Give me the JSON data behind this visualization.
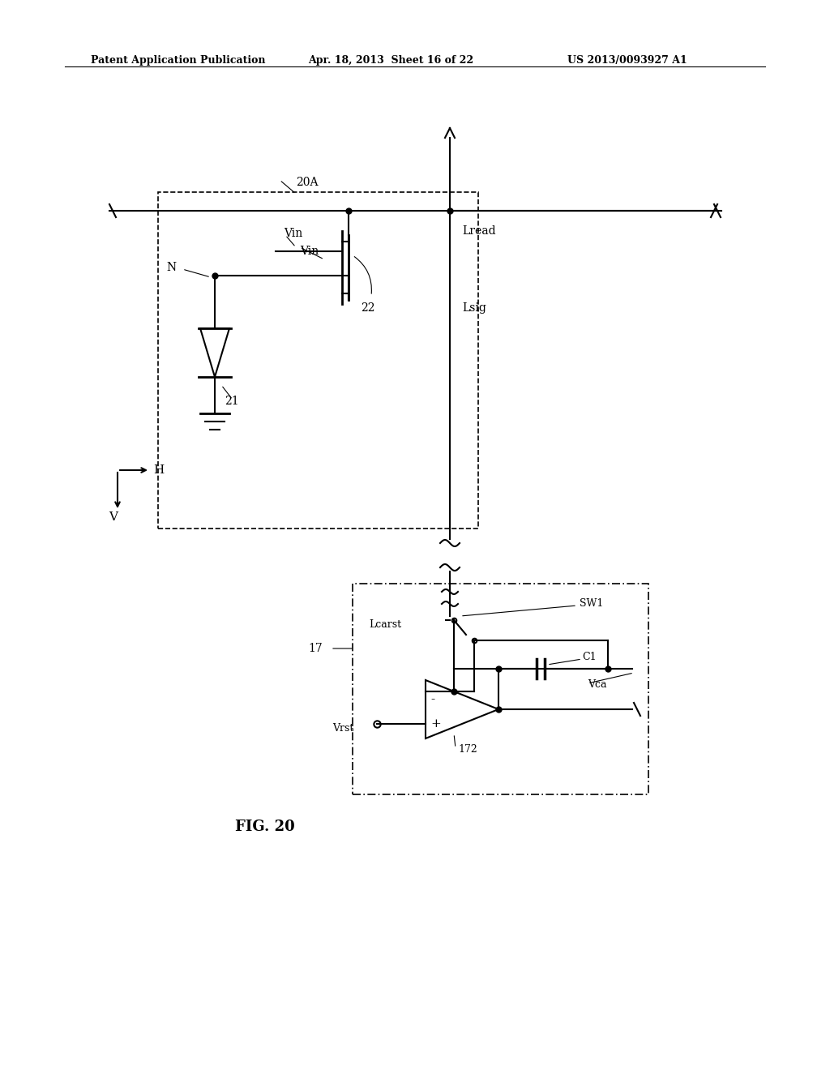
{
  "bg_color": "#ffffff",
  "header_left": "Patent Application Publication",
  "header_mid": "Apr. 18, 2013  Sheet 16 of 22",
  "header_right": "US 2013/0093927 A1",
  "fig_label": "FIG. 20",
  "label_20A": "20A",
  "label_Vin": "Vin",
  "label_N": "N",
  "label_21": "21",
  "label_22": "22",
  "label_Lread": "Lread",
  "label_Lsig": "Lsig",
  "label_H": "H",
  "label_V": "V",
  "label_17": "17",
  "label_Lcarst": "Lcarst",
  "label_SW1": "SW1",
  "label_C1": "C1",
  "label_Vca": "Vca",
  "label_Vrst": "Vrst",
  "label_172": "172"
}
